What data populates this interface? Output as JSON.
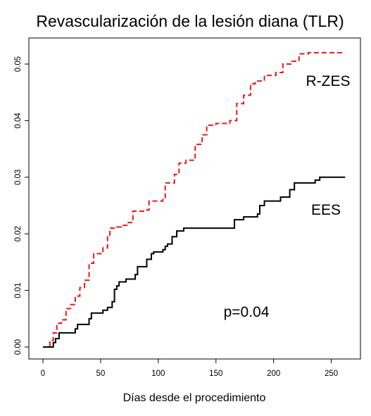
{
  "chart_data": {
    "type": "line",
    "title": "Revascularización de la lesión diana (TLR)",
    "xlabel": "Días desde el procedimiento",
    "ylabel": "",
    "xlim": [
      0,
      260
    ],
    "ylim": [
      0,
      0.05
    ],
    "x_ticks": [
      0,
      50,
      100,
      150,
      200,
      250
    ],
    "x_tick_labels": [
      "0",
      "50",
      "100",
      "150",
      "200",
      "250"
    ],
    "y_ticks": [
      0,
      0.01,
      0.02,
      0.03,
      0.04,
      0.05
    ],
    "y_tick_labels": [
      "0.00",
      "0.01",
      "0.02",
      "0.03",
      "0.04",
      "0.05"
    ],
    "grid": false,
    "annotation": "p=0.04",
    "series": [
      {
        "name": "R-ZES",
        "color": "#e8191c",
        "dash": "dashed",
        "step": true,
        "x": [
          0,
          6,
          9,
          12,
          16,
          20,
          24,
          28,
          32,
          36,
          40,
          44,
          52,
          56,
          58,
          64,
          68,
          74,
          78,
          88,
          92,
          104,
          106,
          114,
          118,
          124,
          132,
          138,
          142,
          150,
          162,
          168,
          174,
          180,
          184,
          192,
          202,
          208,
          216,
          222,
          230,
          260
        ],
        "y": [
          0,
          0.0012,
          0.0025,
          0.0042,
          0.0048,
          0.0068,
          0.0075,
          0.009,
          0.0105,
          0.0118,
          0.0148,
          0.0165,
          0.0175,
          0.0195,
          0.021,
          0.0212,
          0.0215,
          0.022,
          0.024,
          0.0242,
          0.0258,
          0.0262,
          0.029,
          0.0305,
          0.0325,
          0.033,
          0.0358,
          0.0375,
          0.0392,
          0.0395,
          0.04,
          0.043,
          0.0445,
          0.0465,
          0.047,
          0.048,
          0.0485,
          0.05,
          0.0505,
          0.0518,
          0.052,
          0.052
        ]
      },
      {
        "name": "EES",
        "color": "#000000",
        "dash": "solid",
        "step": true,
        "x": [
          0,
          9,
          11,
          14,
          20,
          26,
          28,
          30,
          36,
          40,
          42,
          52,
          56,
          60,
          62,
          64,
          66,
          72,
          80,
          82,
          90,
          94,
          96,
          104,
          106,
          108,
          112,
          116,
          122,
          132,
          150,
          166,
          174,
          186,
          188,
          192,
          206,
          214,
          218,
          236,
          240,
          262
        ],
        "y": [
          0,
          0.0008,
          0.0015,
          0.0025,
          0.0025,
          0.0025,
          0.0032,
          0.004,
          0.004,
          0.005,
          0.006,
          0.0065,
          0.007,
          0.008,
          0.0102,
          0.0108,
          0.0115,
          0.012,
          0.0128,
          0.0142,
          0.0155,
          0.0165,
          0.0168,
          0.0172,
          0.0178,
          0.0182,
          0.0195,
          0.0205,
          0.021,
          0.021,
          0.021,
          0.0225,
          0.023,
          0.0235,
          0.025,
          0.0258,
          0.0265,
          0.0278,
          0.029,
          0.0295,
          0.03,
          0.03
        ]
      }
    ]
  }
}
